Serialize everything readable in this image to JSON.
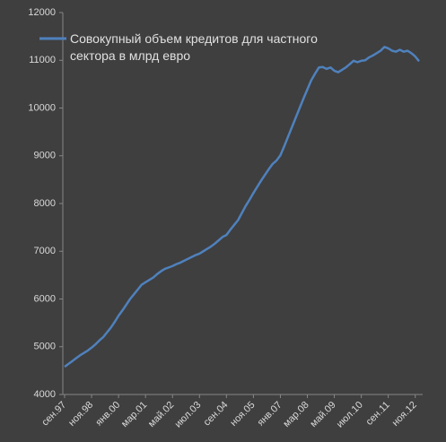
{
  "chart_data": {
    "type": "line",
    "categories": [
      "сен.97",
      null,
      null,
      null,
      null,
      null,
      null,
      "ноя.98",
      null,
      null,
      null,
      null,
      null,
      null,
      "янв.00",
      null,
      null,
      null,
      null,
      null,
      null,
      "мар.01",
      null,
      null,
      null,
      null,
      null,
      null,
      "май.02",
      null,
      null,
      null,
      null,
      null,
      null,
      "июл.03",
      null,
      null,
      null,
      null,
      null,
      null,
      "сен.04",
      null,
      null,
      null,
      null,
      null,
      null,
      "ноя.05",
      null,
      null,
      null,
      null,
      null,
      null,
      "янв.07",
      null,
      null,
      null,
      null,
      null,
      null,
      "мар.08",
      null,
      null,
      null,
      null,
      null,
      null,
      "май.09",
      null,
      null,
      null,
      null,
      null,
      null,
      "июл.10",
      null,
      null,
      null,
      null,
      null,
      null,
      "сен.11",
      null,
      null,
      null,
      null,
      null,
      null,
      "ноя.12",
      null
    ],
    "series": [
      {
        "name": "Совокупный объем кредитов для частного сектора в млрд евро",
        "color": "#4f81bd",
        "values": [
          4580,
          4640,
          4700,
          4760,
          4820,
          4870,
          4920,
          4980,
          5050,
          5130,
          5200,
          5300,
          5400,
          5520,
          5650,
          5760,
          5880,
          6000,
          6100,
          6200,
          6300,
          6350,
          6400,
          6450,
          6520,
          6580,
          6630,
          6660,
          6690,
          6730,
          6760,
          6800,
          6840,
          6880,
          6920,
          6950,
          7000,
          7050,
          7100,
          7160,
          7230,
          7300,
          7340,
          7450,
          7550,
          7650,
          7800,
          7950,
          8080,
          8220,
          8350,
          8480,
          8600,
          8720,
          8830,
          8900,
          9010,
          9200,
          9400,
          9600,
          9800,
          10000,
          10200,
          10390,
          10580,
          10720,
          10850,
          10860,
          10820,
          10850,
          10780,
          10750,
          10800,
          10850,
          10920,
          10990,
          10960,
          10990,
          11000,
          11060,
          11100,
          11150,
          11200,
          11280,
          11250,
          11200,
          11180,
          11220,
          11180,
          11200,
          11150,
          11080,
          10980
        ]
      }
    ],
    "ylim": [
      4000,
      12000
    ],
    "yticks": [
      4000,
      5000,
      6000,
      7000,
      8000,
      9000,
      10000,
      11000,
      12000
    ],
    "grid": false,
    "legend": "top-left"
  }
}
